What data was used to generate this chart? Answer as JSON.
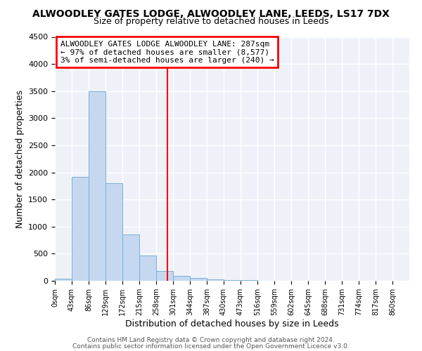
{
  "title": "ALWOODLEY GATES LODGE, ALWOODLEY LANE, LEEDS, LS17 7DX",
  "subtitle": "Size of property relative to detached houses in Leeds",
  "xlabel": "Distribution of detached houses by size in Leeds",
  "ylabel": "Number of detached properties",
  "bar_color": "#c5d8f0",
  "bar_edge_color": "#7bafd4",
  "categories": [
    "0sqm",
    "43sqm",
    "86sqm",
    "129sqm",
    "172sqm",
    "215sqm",
    "258sqm",
    "301sqm",
    "344sqm",
    "387sqm",
    "430sqm",
    "473sqm",
    "516sqm",
    "559sqm",
    "602sqm",
    "645sqm",
    "688sqm",
    "731sqm",
    "774sqm",
    "817sqm",
    "860sqm"
  ],
  "values": [
    40,
    1920,
    3500,
    1800,
    860,
    460,
    185,
    95,
    55,
    30,
    15,
    8,
    4,
    2,
    1,
    0,
    0,
    0,
    0,
    0,
    0
  ],
  "bin_width": 43,
  "property_line_x": 287,
  "property_line_color": "red",
  "annotation_line1": "ALWOODLEY GATES LODGE ALWOODLEY LANE: 287sqm",
  "annotation_line2": "← 97% of detached houses are smaller (8,577)",
  "annotation_line3": "3% of semi-detached houses are larger (240) →",
  "annotation_box_color": "white",
  "annotation_box_edge": "red",
  "ylim": [
    0,
    4500
  ],
  "yticks": [
    0,
    500,
    1000,
    1500,
    2000,
    2500,
    3000,
    3500,
    4000,
    4500
  ],
  "footer1": "Contains HM Land Registry data © Crown copyright and database right 2024.",
  "footer2": "Contains public sector information licensed under the Open Government Licence v3.0.",
  "background_color": "#eef2f8",
  "grid_color": "white",
  "fig_bg_color": "white"
}
